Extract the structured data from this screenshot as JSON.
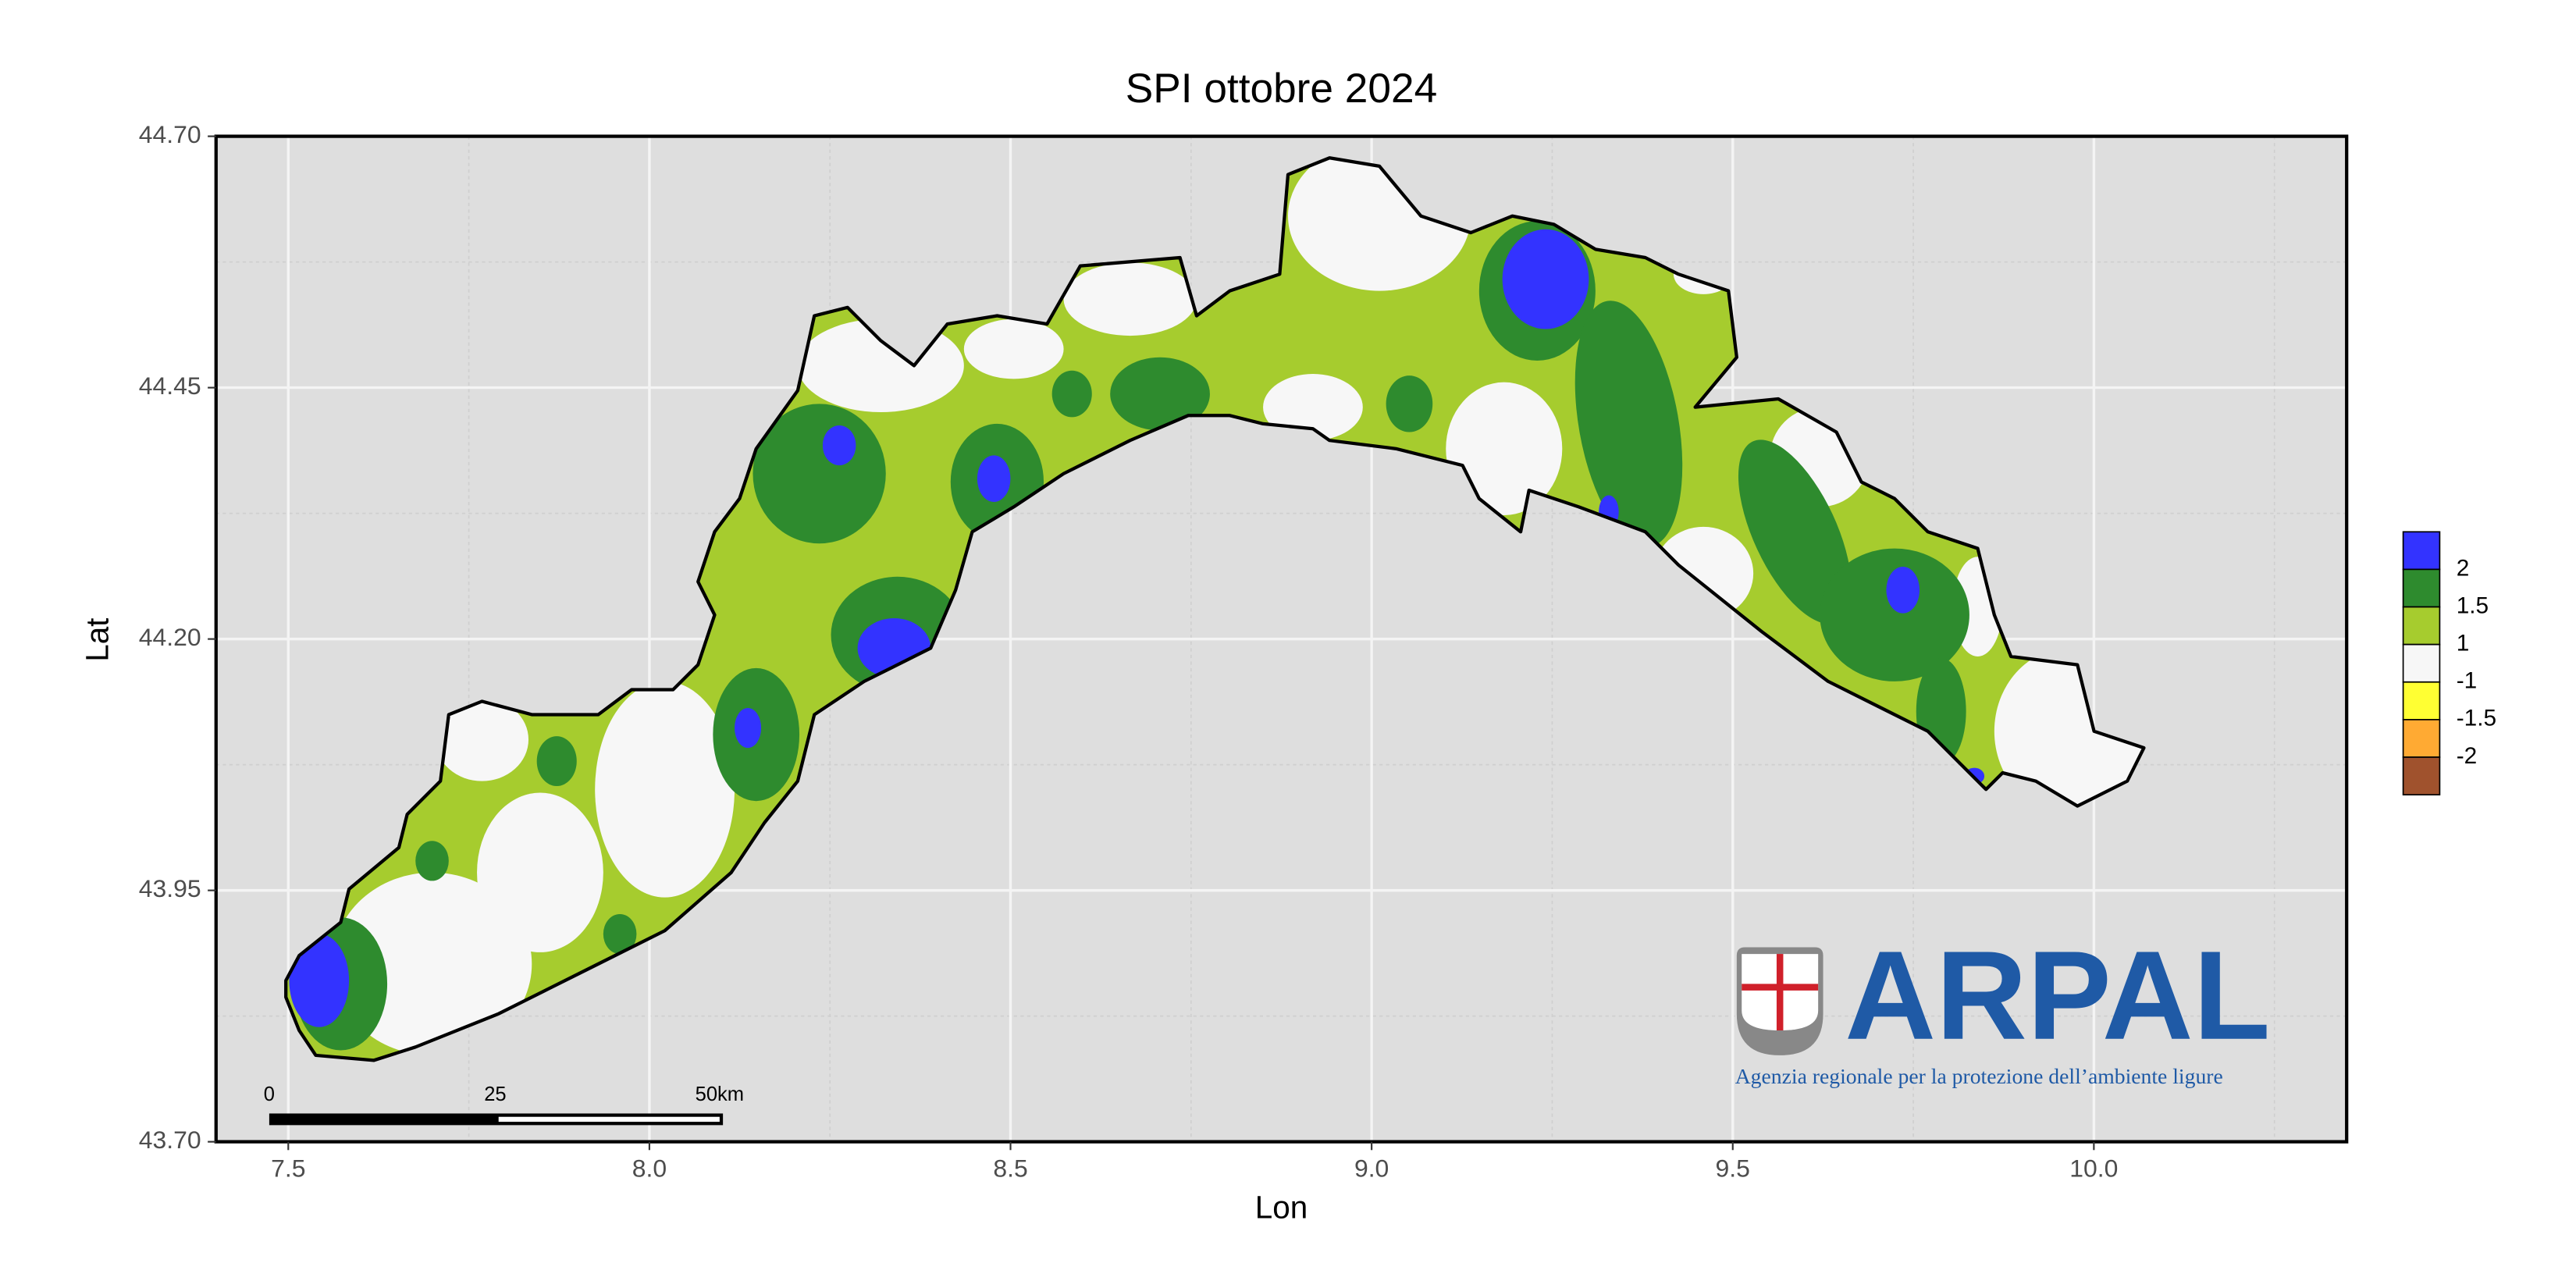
{
  "chart_data": {
    "type": "map",
    "title": "SPI ottobre 2024",
    "x_label": "Lon",
    "y_label": "Lat",
    "xlim": [
      7.4,
      10.35
    ],
    "ylim": [
      43.7,
      44.7
    ],
    "xticks": [
      7.5,
      {
        "value": 8.0,
        "label": "8.0"
      },
      8.5,
      {
        "value": 9.0,
        "label": "9.0"
      },
      9.5,
      {
        "value": 10.0,
        "label": "10.0"
      }
    ],
    "yticks": [
      {
        "value": 43.7,
        "label": "43.70"
      },
      43.95,
      {
        "value": 44.2,
        "label": "44.20"
      },
      44.45,
      {
        "value": 44.7,
        "label": "44.70"
      }
    ],
    "grid": true,
    "legend": {
      "colors": [
        "#3333ff",
        "#2e8b2e",
        "#a6cc2e",
        "#f7f7f7",
        "#ffff33",
        "#ffaa33",
        "#a0522d"
      ],
      "breaks": [
        2,
        1.5,
        1,
        -1,
        -1.5,
        -2
      ]
    },
    "scale_bar": {
      "labels": [
        "0",
        "25",
        "50km"
      ]
    },
    "logo": {
      "name": "ARPAL",
      "subtitle": "Agenzia regionale per la protezione dell’ambiente ligure"
    }
  }
}
